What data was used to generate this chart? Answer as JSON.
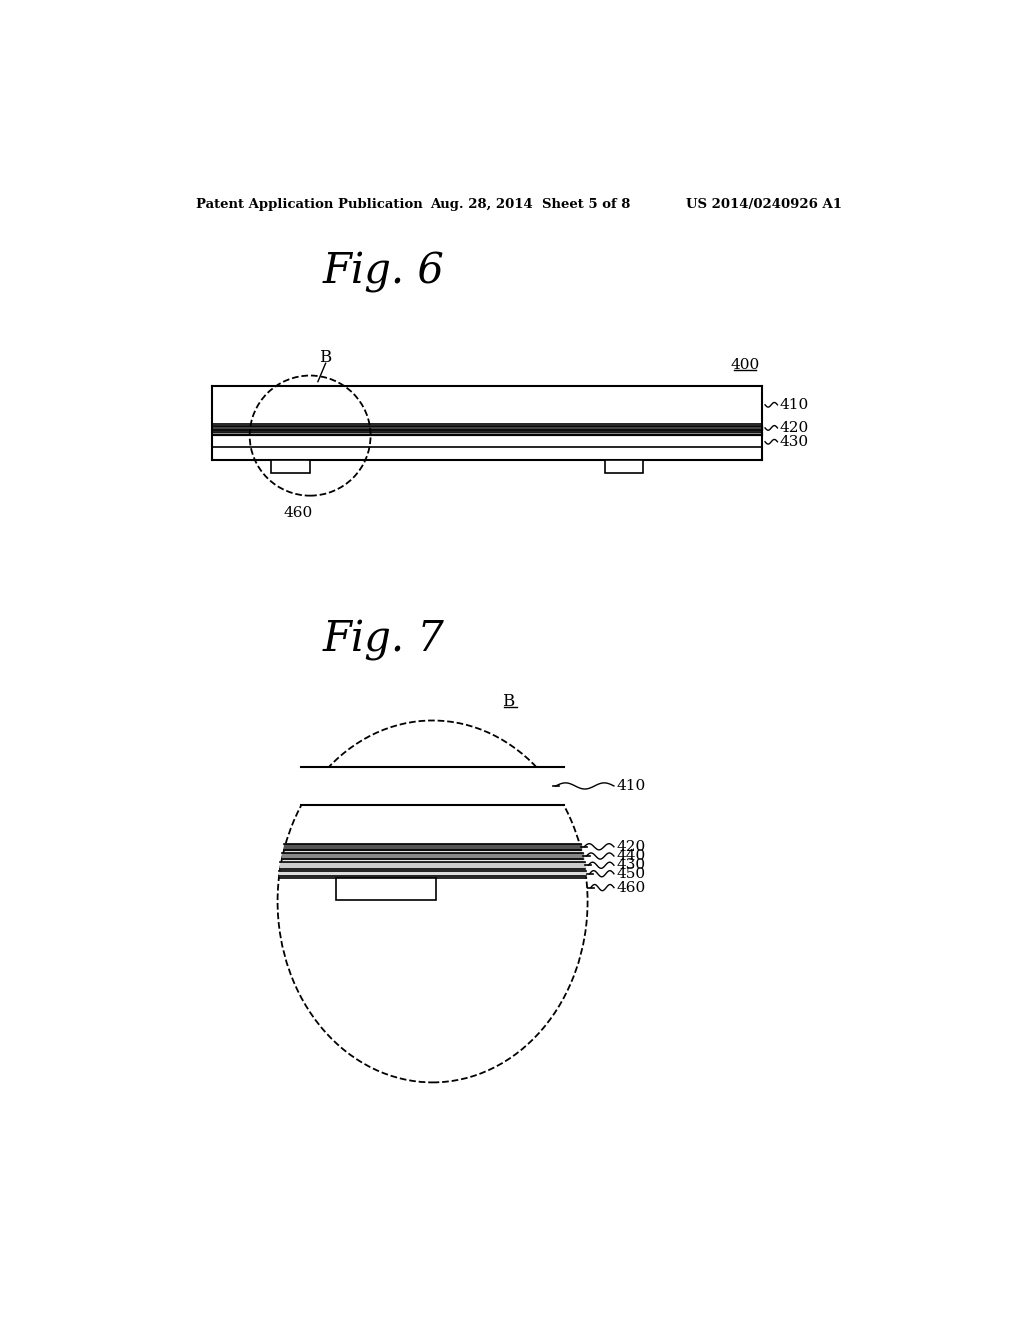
{
  "bg_color": "#ffffff",
  "text_color": "#000000",
  "header_left": "Patent Application Publication",
  "header_center": "Aug. 28, 2014  Sheet 5 of 8",
  "header_right": "US 2014/0240926 A1",
  "fig6_title": "Fig. 6",
  "fig7_title": "Fig. 7",
  "fig6_label_400": "400",
  "fig6_label_410": "410",
  "fig6_label_420": "420",
  "fig6_label_430": "430",
  "fig6_label_460": "460",
  "fig6_label_B": "B",
  "fig7_label_B": "B",
  "fig7_label_410": "410",
  "fig7_label_420": "420",
  "fig7_label_440": "440",
  "fig7_label_430": "430",
  "fig7_label_450": "450",
  "fig7_label_460": "460"
}
